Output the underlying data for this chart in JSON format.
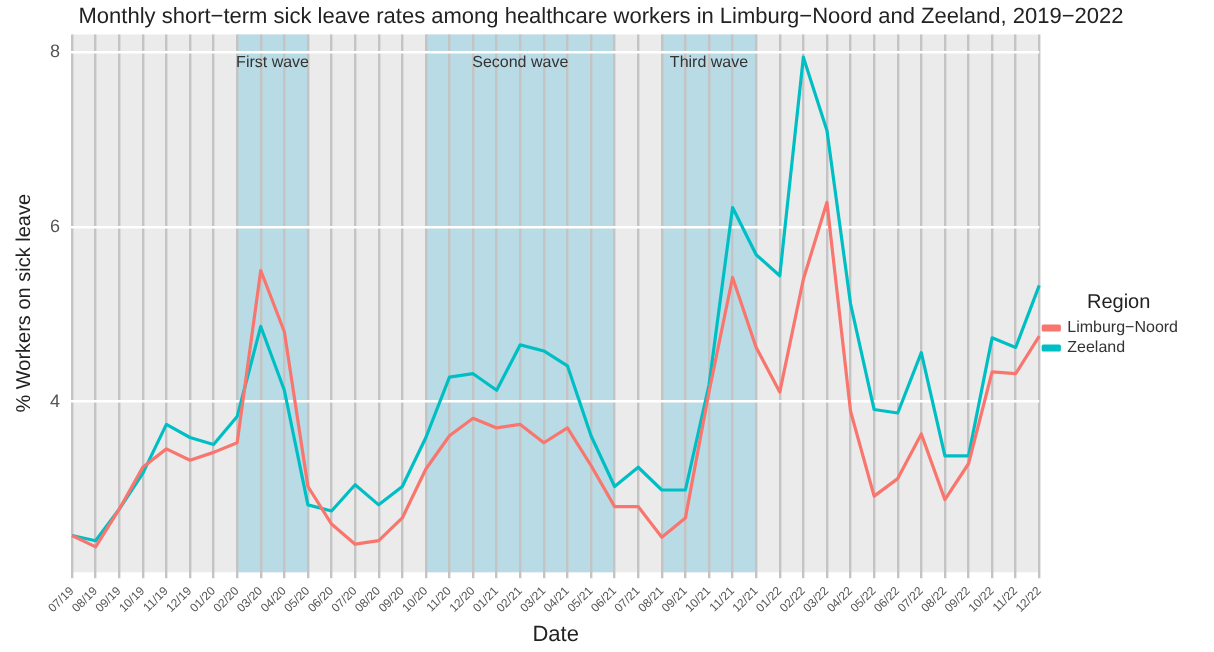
{
  "chart_data": {
    "type": "line",
    "title": "Monthly short−term sick leave rates among healthcare workers in Limburg−Noord and Zeeland, 2019−2022",
    "xlabel": "Date",
    "ylabel": "% Workers on sick leave",
    "legend_title": "Region",
    "legend": "right",
    "grid": true,
    "marker": "none",
    "line_style": "solid",
    "categories": [
      "07/19",
      "08/19",
      "09/19",
      "10/19",
      "11/19",
      "12/19",
      "01/20",
      "02/20",
      "03/20",
      "04/20",
      "05/20",
      "06/20",
      "07/20",
      "08/20",
      "09/20",
      "10/20",
      "11/20",
      "12/20",
      "01/21",
      "02/21",
      "03/21",
      "04/21",
      "05/21",
      "06/21",
      "07/21",
      "08/21",
      "09/21",
      "10/21",
      "11/21",
      "12/21",
      "01/22",
      "02/22",
      "03/22",
      "04/22",
      "05/22",
      "06/22",
      "07/22",
      "08/22",
      "09/22",
      "10/22",
      "11/22",
      "12/22"
    ],
    "ylim": [
      2.05,
      8.2
    ],
    "yticks": [
      4,
      6,
      8
    ],
    "series": [
      {
        "name": "Limburg−Noord",
        "color": "#f8766d",
        "values": [
          2.47,
          2.34,
          2.77,
          3.25,
          3.46,
          3.33,
          3.42,
          3.53,
          5.5,
          4.8,
          3.03,
          2.6,
          2.37,
          2.41,
          2.67,
          3.23,
          3.61,
          3.81,
          3.7,
          3.74,
          3.53,
          3.7,
          3.27,
          2.8,
          2.8,
          2.45,
          2.67,
          4.11,
          5.42,
          4.62,
          4.11,
          5.4,
          6.28,
          3.89,
          2.92,
          3.12,
          3.63,
          2.88,
          3.29,
          4.34,
          4.32,
          4.75
        ]
      },
      {
        "name": "Zeeland",
        "color": "#00bfc4",
        "values": [
          2.47,
          2.41,
          2.77,
          3.18,
          3.74,
          3.59,
          3.51,
          3.83,
          4.86,
          4.13,
          2.82,
          2.75,
          3.05,
          2.82,
          3.03,
          3.59,
          4.28,
          4.32,
          4.13,
          4.65,
          4.58,
          4.41,
          3.61,
          3.03,
          3.25,
          2.99,
          2.99,
          4.19,
          6.22,
          5.68,
          5.44,
          7.94,
          7.1,
          5.12,
          3.91,
          3.87,
          4.56,
          3.38,
          3.38,
          4.73,
          4.62,
          5.33
        ]
      }
    ],
    "bands": [
      {
        "axis": "x",
        "from": "02/20",
        "to": "05/20",
        "label": "First wave",
        "color": "#b9dbe5"
      },
      {
        "axis": "x",
        "from": "10/20",
        "to": "06/21",
        "label": "Second wave",
        "color": "#b9dbe5"
      },
      {
        "axis": "x",
        "from": "08/21",
        "to": "12/21",
        "label": "Third wave",
        "color": "#b9dbe5"
      }
    ]
  }
}
